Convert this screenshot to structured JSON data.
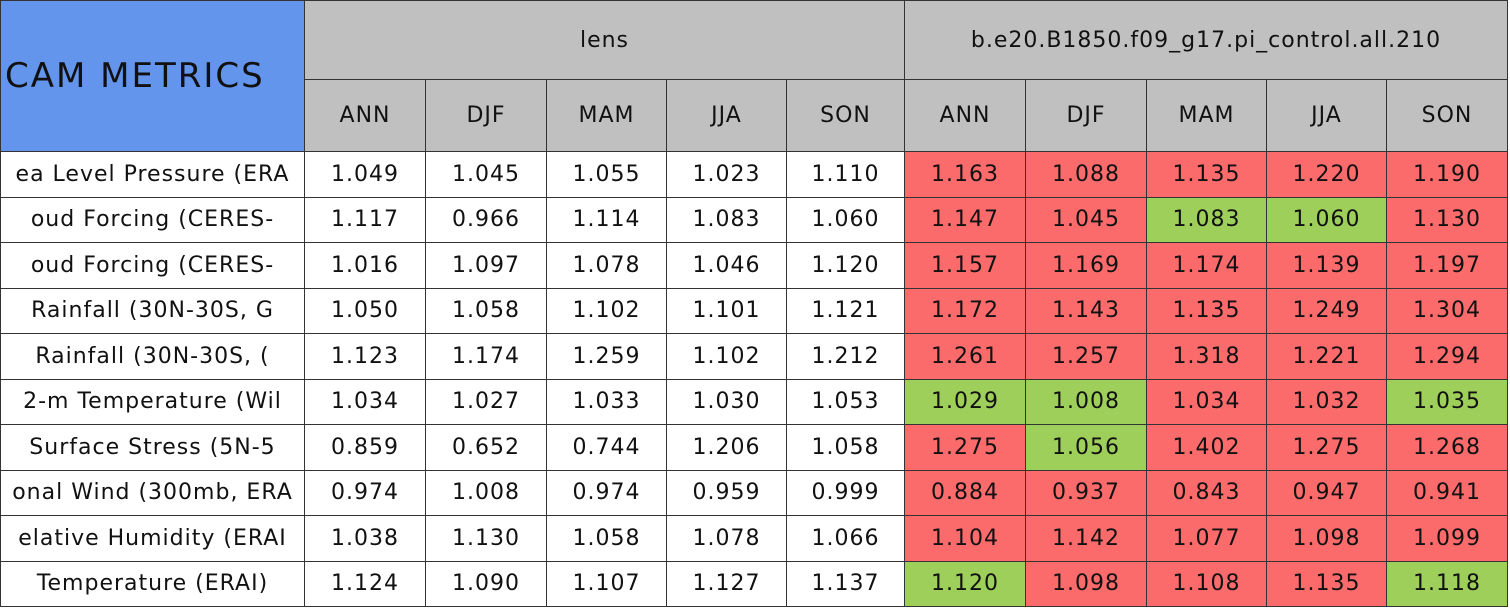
{
  "header": {
    "title": "CAM METRICS",
    "groups": [
      "lens",
      "b.e20.B1850.f09_g17.pi_control.all.210"
    ],
    "seasons": [
      "ANN",
      "DJF",
      "MAM",
      "JJA",
      "SON"
    ]
  },
  "palette": {
    "red": "#fb6b6b",
    "green": "#9fcf5b"
  },
  "table": {
    "rows": [
      {
        "label": "ea Level Pressure (ERA",
        "lens": [
          "1.049",
          "1.045",
          "1.055",
          "1.023",
          "1.110"
        ],
        "control": [
          "1.163",
          "1.088",
          "1.135",
          "1.220",
          "1.190"
        ],
        "control_colors": [
          "red",
          "red",
          "red",
          "red",
          "red"
        ]
      },
      {
        "label": "oud Forcing (CERES-",
        "lens": [
          "1.117",
          "0.966",
          "1.114",
          "1.083",
          "1.060"
        ],
        "control": [
          "1.147",
          "1.045",
          "1.083",
          "1.060",
          "1.130"
        ],
        "control_colors": [
          "red",
          "red",
          "green",
          "green",
          "red"
        ]
      },
      {
        "label": "oud Forcing (CERES-",
        "lens": [
          "1.016",
          "1.097",
          "1.078",
          "1.046",
          "1.120"
        ],
        "control": [
          "1.157",
          "1.169",
          "1.174",
          "1.139",
          "1.197"
        ],
        "control_colors": [
          "red",
          "red",
          "red",
          "red",
          "red"
        ]
      },
      {
        "label": "Rainfall (30N-30S, G",
        "lens": [
          "1.050",
          "1.058",
          "1.102",
          "1.101",
          "1.121"
        ],
        "control": [
          "1.172",
          "1.143",
          "1.135",
          "1.249",
          "1.304"
        ],
        "control_colors": [
          "red",
          "red",
          "red",
          "red",
          "red"
        ]
      },
      {
        "label": "Rainfall (30N-30S, (",
        "lens": [
          "1.123",
          "1.174",
          "1.259",
          "1.102",
          "1.212"
        ],
        "control": [
          "1.261",
          "1.257",
          "1.318",
          "1.221",
          "1.294"
        ],
        "control_colors": [
          "red",
          "red",
          "red",
          "red",
          "red"
        ]
      },
      {
        "label": "2-m Temperature (Wil",
        "lens": [
          "1.034",
          "1.027",
          "1.033",
          "1.030",
          "1.053"
        ],
        "control": [
          "1.029",
          "1.008",
          "1.034",
          "1.032",
          "1.035"
        ],
        "control_colors": [
          "green",
          "green",
          "red",
          "red",
          "green"
        ]
      },
      {
        "label": "Surface Stress (5N-5",
        "lens": [
          "0.859",
          "0.652",
          "0.744",
          "1.206",
          "1.058"
        ],
        "control": [
          "1.275",
          "1.056",
          "1.402",
          "1.275",
          "1.268"
        ],
        "control_colors": [
          "red",
          "green",
          "red",
          "red",
          "red"
        ]
      },
      {
        "label": "onal Wind (300mb, ERA",
        "lens": [
          "0.974",
          "1.008",
          "0.974",
          "0.959",
          "0.999"
        ],
        "control": [
          "0.884",
          "0.937",
          "0.843",
          "0.947",
          "0.941"
        ],
        "control_colors": [
          "red",
          "red",
          "red",
          "red",
          "red"
        ]
      },
      {
        "label": "elative Humidity (ERAI",
        "lens": [
          "1.038",
          "1.130",
          "1.058",
          "1.078",
          "1.066"
        ],
        "control": [
          "1.104",
          "1.142",
          "1.077",
          "1.098",
          "1.099"
        ],
        "control_colors": [
          "red",
          "red",
          "red",
          "red",
          "red"
        ]
      },
      {
        "label": "Temperature (ERAI)",
        "lens": [
          "1.124",
          "1.090",
          "1.107",
          "1.127",
          "1.137"
        ],
        "control": [
          "1.120",
          "1.098",
          "1.108",
          "1.135",
          "1.118"
        ],
        "control_colors": [
          "green",
          "red",
          "red",
          "red",
          "green"
        ]
      }
    ]
  }
}
